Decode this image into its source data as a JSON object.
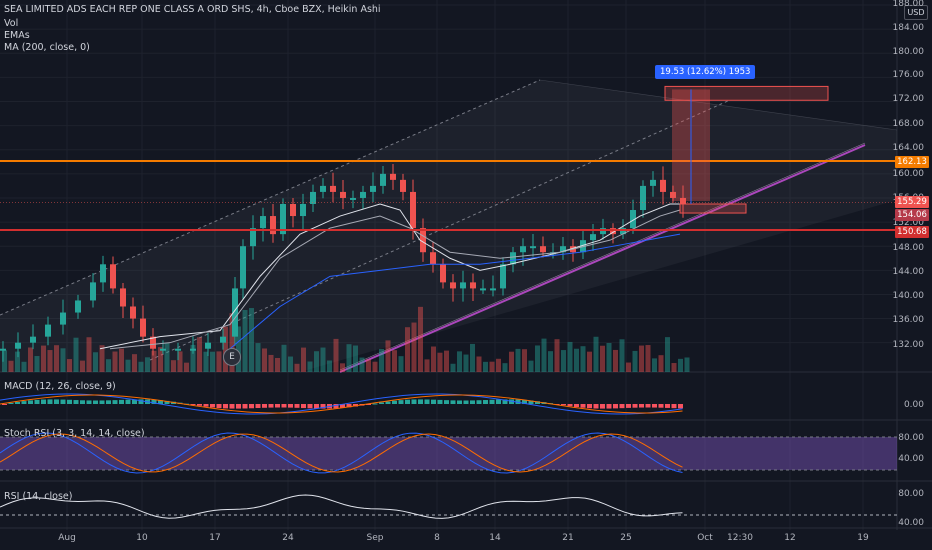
{
  "header": {
    "title": "SEA LIMITED ADS EACH REP ONE CLASS A ORD SHS, 4h, Cboe BZX, Heikin Ashi",
    "indicators": [
      "Vol",
      "EMAs",
      "MA (200, close, 0)"
    ]
  },
  "currency": "USD",
  "price_axis": {
    "ticks": [
      "188.00",
      "184.00",
      "180.00",
      "176.00",
      "172.00",
      "168.00",
      "164.00",
      "160.00",
      "156.00",
      "152.00",
      "148.00",
      "144.00",
      "140.00",
      "136.00",
      "132.00"
    ]
  },
  "price_tags": {
    "resistance": "162.13",
    "last": "155.29",
    "stop": "154.06",
    "support": "150.68"
  },
  "measure_tooltip": "19.53 (12.62%) 1953",
  "earnings_marker": "E",
  "panes": {
    "macd": {
      "label": "MACD (12, 26, close, 9)",
      "ticks": [
        "0.00"
      ]
    },
    "stoch": {
      "label": "Stoch RSI (3, 3, 14, 14, close)",
      "ticks": [
        "80.00",
        "40.00"
      ]
    },
    "rsi": {
      "label": "RSI (14, close)",
      "ticks": [
        "80.00",
        "40.00"
      ]
    }
  },
  "time_axis": [
    "Aug",
    "10",
    "17",
    "24",
    "Sep",
    "8",
    "14",
    "21",
    "25",
    "Oct",
    "12:30",
    "12",
    "19"
  ],
  "colors": {
    "background": "#131722",
    "up": "#26a69a",
    "down": "#ef5350",
    "resistance": "#f57c00",
    "support": "#d32f2f",
    "trendline": "#ab47bc",
    "accent": "#2962ff"
  },
  "chart_data": {
    "type": "candlestick",
    "y_unit": "USD",
    "ylim": [
      130,
      188
    ],
    "levels": {
      "resistance": 162.13,
      "last": 155.29,
      "stop": 154.06,
      "support": 150.68
    },
    "target_zone": [
      172.2,
      174.5
    ],
    "measure": "19.53 (12.62%)"
  }
}
